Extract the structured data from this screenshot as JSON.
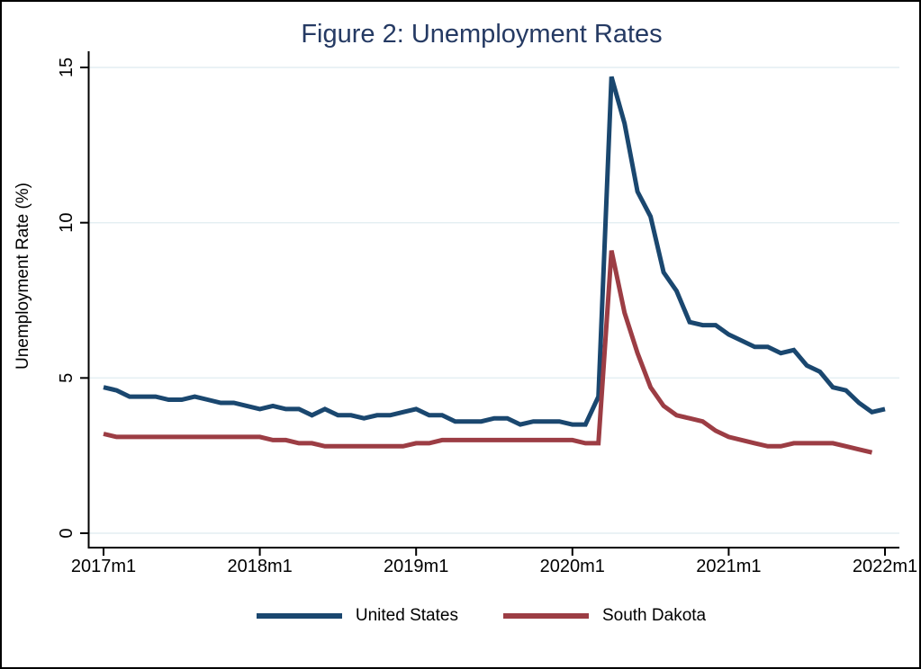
{
  "chart_data": {
    "type": "line",
    "title": "Figure 2: Unemployment Rates",
    "xlabel": "",
    "ylabel": "Unemployment Rate (%)",
    "x_start": "2017m1",
    "x_frequency": "monthly",
    "x_tick_labels": [
      "2017m1",
      "2018m1",
      "2019m1",
      "2020m1",
      "2021m1",
      "2022m1"
    ],
    "x_tick_month_index": [
      0,
      12,
      24,
      36,
      48,
      60
    ],
    "y_ticks": [
      0,
      5,
      10,
      15
    ],
    "ylim": [
      0,
      15
    ],
    "grid": true,
    "legend_position": "bottom",
    "series": [
      {
        "name": "United States",
        "color": "#1a476f",
        "start_month_index": 0,
        "values": [
          4.7,
          4.6,
          4.4,
          4.4,
          4.4,
          4.3,
          4.3,
          4.4,
          4.3,
          4.2,
          4.2,
          4.1,
          4.0,
          4.1,
          4.0,
          4.0,
          3.8,
          4.0,
          3.8,
          3.8,
          3.7,
          3.8,
          3.8,
          3.9,
          4.0,
          3.8,
          3.8,
          3.6,
          3.6,
          3.6,
          3.7,
          3.7,
          3.5,
          3.6,
          3.6,
          3.6,
          3.5,
          3.5,
          4.4,
          14.7,
          13.2,
          11.0,
          10.2,
          8.4,
          7.8,
          6.8,
          6.7,
          6.7,
          6.4,
          6.2,
          6.0,
          6.0,
          5.8,
          5.9,
          5.4,
          5.2,
          4.7,
          4.6,
          4.2,
          3.9,
          4.0
        ]
      },
      {
        "name": "South Dakota",
        "color": "#9c3d44",
        "start_month_index": 0,
        "values": [
          3.2,
          3.1,
          3.1,
          3.1,
          3.1,
          3.1,
          3.1,
          3.1,
          3.1,
          3.1,
          3.1,
          3.1,
          3.1,
          3.0,
          3.0,
          2.9,
          2.9,
          2.8,
          2.8,
          2.8,
          2.8,
          2.8,
          2.8,
          2.8,
          2.9,
          2.9,
          3.0,
          3.0,
          3.0,
          3.0,
          3.0,
          3.0,
          3.0,
          3.0,
          3.0,
          3.0,
          3.0,
          2.9,
          2.9,
          9.1,
          7.1,
          5.8,
          4.7,
          4.1,
          3.8,
          3.7,
          3.6,
          3.3,
          3.1,
          3.0,
          2.9,
          2.8,
          2.8,
          2.9,
          2.9,
          2.9,
          2.9,
          2.8,
          2.7,
          2.6
        ]
      }
    ]
  },
  "colors": {
    "title_text": "#253a63",
    "grid": "#e3eef2",
    "axis": "#000000"
  }
}
